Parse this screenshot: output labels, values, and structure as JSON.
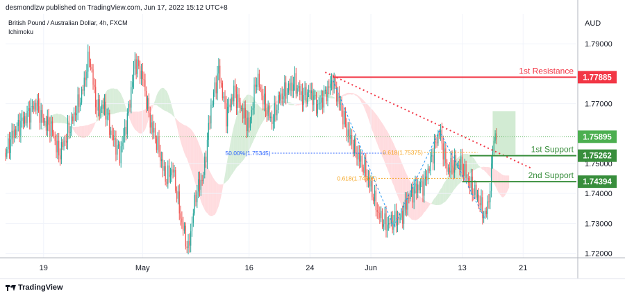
{
  "header": {
    "author_line": "desmondlzw published on TradingView.com, Jun 17, 2022 15:12 UTC+8"
  },
  "legend": {
    "symbol": "British Pound / Australian Dollar, 4h, FXCM",
    "indicator": "Ichimoku"
  },
  "footer": {
    "brand": "TradingView"
  },
  "colors": {
    "up": "#26a69a",
    "down": "#ef5350",
    "resistance": "#f23645",
    "support": "#388e3c",
    "price": "#4caf50",
    "fib_blue": "#2962ff",
    "fib_gold": "#f5a623",
    "cloud_green": "#c8e6c9",
    "cloud_red": "#ffcdd2"
  },
  "chart_data": {
    "type": "candlestick",
    "currency_label": "AUD",
    "ylim": [
      1.7185,
      1.8
    ],
    "y_ticks": [
      {
        "value": 1.72,
        "label": "1.72000"
      },
      {
        "value": 1.73,
        "label": "1.73000"
      },
      {
        "value": 1.74,
        "label": "1.74000"
      },
      {
        "value": 1.75,
        "label": "1.75000"
      },
      {
        "value": 1.77,
        "label": "1.77000"
      },
      {
        "value": 1.79,
        "label": "1.79000"
      }
    ],
    "x_ticks": [
      {
        "date": "2022-04-19",
        "label": "19"
      },
      {
        "date": "2022-05-02",
        "label": "May"
      },
      {
        "date": "2022-05-16",
        "label": "16"
      },
      {
        "date": "2022-05-24",
        "label": "24"
      },
      {
        "date": "2022-06-01",
        "label": "Jun"
      },
      {
        "date": "2022-06-13",
        "label": "13"
      },
      {
        "date": "2022-06-21",
        "label": "21"
      }
    ],
    "levels": [
      {
        "name": "1st Resistance",
        "value": 1.77885,
        "label": "1.77885",
        "color": "#f23645",
        "from_date": "2022-05-27"
      },
      {
        "name": "1st Support",
        "value": 1.75262,
        "label": "1.75262",
        "color": "#388e3c",
        "from_date": "2022-06-14"
      },
      {
        "name": "2nd Support",
        "value": 1.74394,
        "label": "1.74394",
        "color": "#388e3c",
        "from_date": "2022-06-13"
      }
    ],
    "last_price": {
      "value": 1.75895,
      "label": "1.75895"
    },
    "fib_labels": [
      {
        "text": "50.00%(1.75345)",
        "value": 1.75345,
        "color": "#2962ff",
        "from_date": "2022-05-19",
        "to_date": "2022-06-03"
      },
      {
        "text": "0.618(1.74505)",
        "value": 1.74505,
        "color": "#f5a623",
        "from_date": "2022-06-02",
        "to_date": "2022-06-13"
      },
      {
        "text": "0.618(1.75375)",
        "value": 1.75375,
        "color": "#f5a623",
        "from_date": "2022-06-08",
        "to_date": "2022-06-15"
      }
    ],
    "trendline": {
      "from": {
        "date": "2022-05-26",
        "value": 1.7805
      },
      "to": {
        "date": "2022-06-22",
        "value": 1.7485
      }
    },
    "fib_swings": [
      {
        "from": {
          "date": "2022-05-27",
          "value": 1.7778
        },
        "to": {
          "date": "2022-06-04",
          "value": 1.729
        }
      },
      {
        "from": {
          "date": "2022-06-04",
          "value": 1.729
        },
        "to": {
          "date": "2022-06-10",
          "value": 1.761
        }
      },
      {
        "from": {
          "date": "2022-06-10",
          "value": 1.761
        },
        "to": {
          "date": "2022-06-16",
          "value": 1.7315
        }
      }
    ],
    "target_box": {
      "from_date": "2022-06-17",
      "to_date": "2022-06-20",
      "top": 1.7675,
      "bottom": 1.753
    },
    "x_range": [
      "2022-04-14",
      "2022-06-28"
    ],
    "series": [
      {
        "name": "",
        "anchors": [
          {
            "date": "2022-04-14",
            "value": 1.7535
          },
          {
            "date": "2022-04-15",
            "value": 1.76
          },
          {
            "date": "2022-04-18",
            "value": 1.77
          },
          {
            "date": "2022-04-19",
            "value": 1.764
          },
          {
            "date": "2022-04-20",
            "value": 1.762
          },
          {
            "date": "2022-04-21",
            "value": 1.753
          },
          {
            "date": "2022-04-22",
            "value": 1.759
          },
          {
            "date": "2022-04-24",
            "value": 1.773
          },
          {
            "date": "2022-04-25",
            "value": 1.786
          },
          {
            "date": "2022-04-26",
            "value": 1.768
          },
          {
            "date": "2022-04-27",
            "value": 1.769
          },
          {
            "date": "2022-04-28",
            "value": 1.759
          },
          {
            "date": "2022-04-29",
            "value": 1.753
          },
          {
            "date": "2022-04-30",
            "value": 1.765
          },
          {
            "date": "2022-05-01",
            "value": 1.784
          },
          {
            "date": "2022-05-02",
            "value": 1.779
          },
          {
            "date": "2022-05-03",
            "value": 1.764
          },
          {
            "date": "2022-05-04",
            "value": 1.756
          },
          {
            "date": "2022-05-05",
            "value": 1.745
          },
          {
            "date": "2022-05-06",
            "value": 1.748
          },
          {
            "date": "2022-05-07",
            "value": 1.732
          },
          {
            "date": "2022-05-08",
            "value": 1.721
          },
          {
            "date": "2022-05-09",
            "value": 1.74
          },
          {
            "date": "2022-05-10",
            "value": 1.746
          },
          {
            "date": "2022-05-11",
            "value": 1.769
          },
          {
            "date": "2022-05-12",
            "value": 1.781
          },
          {
            "date": "2022-05-13",
            "value": 1.766
          },
          {
            "date": "2022-05-14",
            "value": 1.774
          },
          {
            "date": "2022-05-16",
            "value": 1.762
          },
          {
            "date": "2022-05-17",
            "value": 1.779
          },
          {
            "date": "2022-05-18",
            "value": 1.77
          },
          {
            "date": "2022-05-19",
            "value": 1.764
          },
          {
            "date": "2022-05-20",
            "value": 1.772
          },
          {
            "date": "2022-05-22",
            "value": 1.777
          },
          {
            "date": "2022-05-23",
            "value": 1.772
          },
          {
            "date": "2022-05-24",
            "value": 1.774
          },
          {
            "date": "2022-05-25",
            "value": 1.769
          },
          {
            "date": "2022-05-26",
            "value": 1.773
          },
          {
            "date": "2022-05-27",
            "value": 1.7778
          },
          {
            "date": "2022-05-28",
            "value": 1.769
          },
          {
            "date": "2022-05-29",
            "value": 1.76
          },
          {
            "date": "2022-05-30",
            "value": 1.754
          },
          {
            "date": "2022-05-31",
            "value": 1.749
          },
          {
            "date": "2022-06-01",
            "value": 1.742
          },
          {
            "date": "2022-06-02",
            "value": 1.733
          },
          {
            "date": "2022-06-03",
            "value": 1.7295
          },
          {
            "date": "2022-06-04",
            "value": 1.731
          },
          {
            "date": "2022-06-05",
            "value": 1.732
          },
          {
            "date": "2022-06-06",
            "value": 1.739
          },
          {
            "date": "2022-06-07",
            "value": 1.742
          },
          {
            "date": "2022-06-08",
            "value": 1.743
          },
          {
            "date": "2022-06-09",
            "value": 1.752
          },
          {
            "date": "2022-06-10",
            "value": 1.761
          },
          {
            "date": "2022-06-11",
            "value": 1.748
          },
          {
            "date": "2022-06-12",
            "value": 1.75
          },
          {
            "date": "2022-06-13",
            "value": 1.749
          },
          {
            "date": "2022-06-14",
            "value": 1.743
          },
          {
            "date": "2022-06-15",
            "value": 1.739
          },
          {
            "date": "2022-06-16",
            "value": 1.732
          },
          {
            "date": "2022-06-16T18:00",
            "value": 1.742
          },
          {
            "date": "2022-06-17",
            "value": 1.757
          },
          {
            "date": "2022-06-17T12:00",
            "value": 1.759
          }
        ]
      }
    ]
  }
}
